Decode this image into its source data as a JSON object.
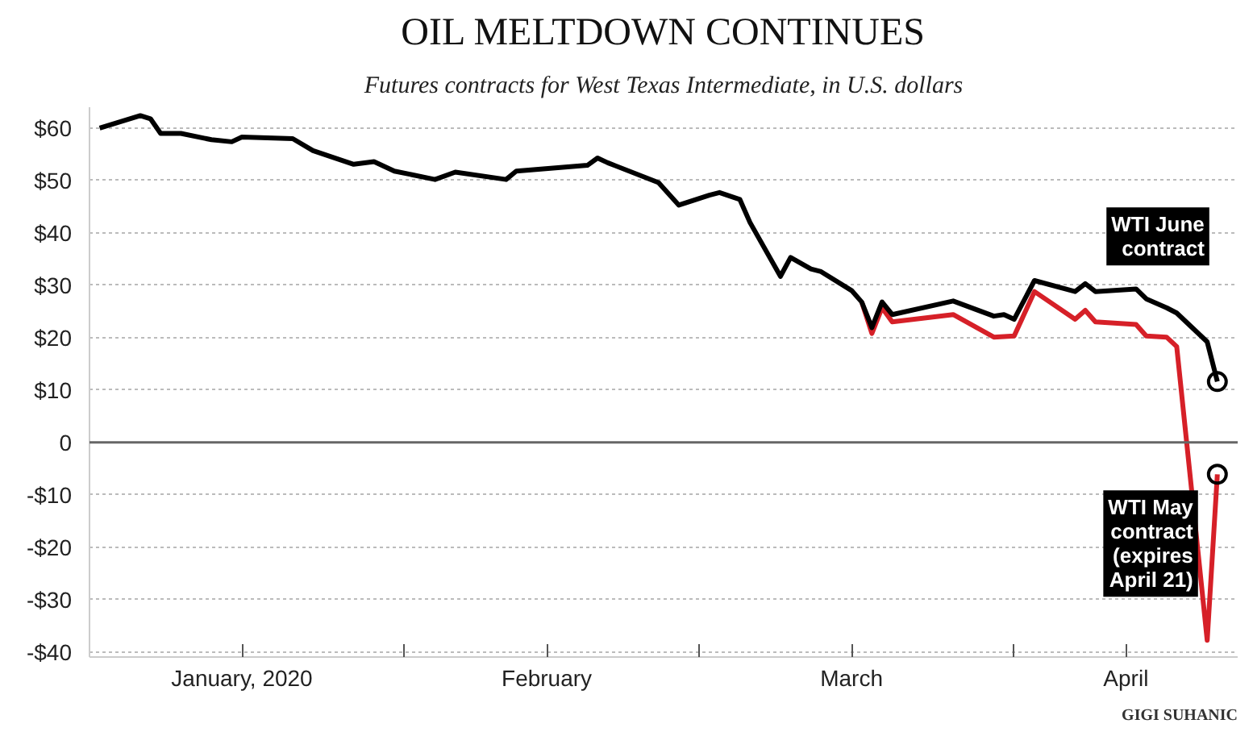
{
  "chart_data": {
    "type": "line",
    "title": "OIL MELTDOWN CONTINUES",
    "subtitle": "Futures contracts for West Texas Intermediate, in U.S. dollars",
    "annotations": [
      "GIGI SUHANIC"
    ],
    "xlim": [
      "2020-01-01",
      "2020-04-23"
    ],
    "xticks": [
      {
        "value": "2020-01-16",
        "label": "January, 2020"
      },
      {
        "value": "2020-02-01",
        "label": null
      },
      {
        "value": "2020-02-15",
        "label": "February"
      },
      {
        "value": "2020-03-01",
        "label": null
      },
      {
        "value": "2020-03-16",
        "label": "March"
      },
      {
        "value": "2020-04-01",
        "label": null
      },
      {
        "value": "2020-04-12",
        "label": "April"
      }
    ],
    "ylim": [
      -41,
      64
    ],
    "yticks": [
      {
        "value": -40,
        "label": "-$40"
      },
      {
        "value": -30,
        "label": "-$30"
      },
      {
        "value": -20,
        "label": "-$20"
      },
      {
        "value": -10,
        "label": "-$10"
      },
      0,
      {
        "value": 10,
        "label": "$10"
      },
      {
        "value": 20,
        "label": "$20"
      },
      {
        "value": 30,
        "label": "$30"
      },
      {
        "value": 40,
        "label": "$40"
      },
      {
        "value": 50,
        "label": "$50"
      },
      {
        "value": 60,
        "label": "$60"
      }
    ],
    "grid": "y",
    "ref_lines": [
      {
        "axis": "y",
        "value": 0,
        "label": null,
        "color": "#666666",
        "line_style": "solid"
      }
    ],
    "series": [
      {
        "name": "WTI May contract (expires April 21)",
        "color": "#d62028",
        "x": [
          "2020-03-17",
          "2020-03-18",
          "2020-03-19",
          "2020-03-20",
          "2020-03-26",
          "2020-03-30",
          "2020-04-01",
          "2020-04-03",
          "2020-04-07",
          "2020-04-08",
          "2020-04-09",
          "2020-04-13",
          "2020-04-14",
          "2020-04-16",
          "2020-04-17",
          "2020-04-20",
          "2020-04-21"
        ],
        "values": [
          26.8,
          20.8,
          25.7,
          23,
          24.4,
          20.1,
          20.3,
          28.8,
          23.5,
          25.2,
          23,
          22.5,
          20.3,
          20.1,
          18.3,
          -37.8,
          -6.1
        ]
      },
      {
        "name": "WTI June contract",
        "color": "#000000",
        "x": [
          "2020-01-02",
          "2020-01-06",
          "2020-01-07",
          "2020-01-08",
          "2020-01-10",
          "2020-01-13",
          "2020-01-15",
          "2020-01-16",
          "2020-01-21",
          "2020-01-23",
          "2020-01-27",
          "2020-01-29",
          "2020-01-31",
          "2020-02-04",
          "2020-02-06",
          "2020-02-11",
          "2020-02-12",
          "2020-02-19",
          "2020-02-20",
          "2020-02-21",
          "2020-02-26",
          "2020-02-28",
          "2020-03-02",
          "2020-03-03",
          "2020-03-05",
          "2020-03-06",
          "2020-03-09",
          "2020-03-10",
          "2020-03-12",
          "2020-03-13",
          "2020-03-16",
          "2020-03-17",
          "2020-03-18",
          "2020-03-19",
          "2020-03-20",
          "2020-03-26",
          "2020-03-30",
          "2020-03-31",
          "2020-04-01",
          "2020-04-03",
          "2020-04-07",
          "2020-04-08",
          "2020-04-09",
          "2020-04-13",
          "2020-04-14",
          "2020-04-16",
          "2020-04-17",
          "2020-04-20",
          "2020-04-21"
        ],
        "values": [
          60,
          62.4,
          61.8,
          59,
          59,
          57.8,
          57.4,
          58.3,
          58,
          55.7,
          53.1,
          53.6,
          51.8,
          50.2,
          51.6,
          50.2,
          51.8,
          52.9,
          54.3,
          53.4,
          49.6,
          45.3,
          47.2,
          47.7,
          46.4,
          42,
          31.7,
          35.3,
          33.1,
          32.6,
          29,
          26.8,
          21.9,
          26.8,
          24.4,
          27,
          24.1,
          24.4,
          23.5,
          30.9,
          28.8,
          30.3,
          28.8,
          29.3,
          27.4,
          25.7,
          24.7,
          19.2,
          11.6
        ]
      },
      {
        "type": "scatter",
        "marker": "circle",
        "color": "#000000",
        "x": [
          "2020-04-21",
          "2020-04-21"
        ],
        "values": [
          11.6,
          -6.1
        ]
      }
    ]
  }
}
